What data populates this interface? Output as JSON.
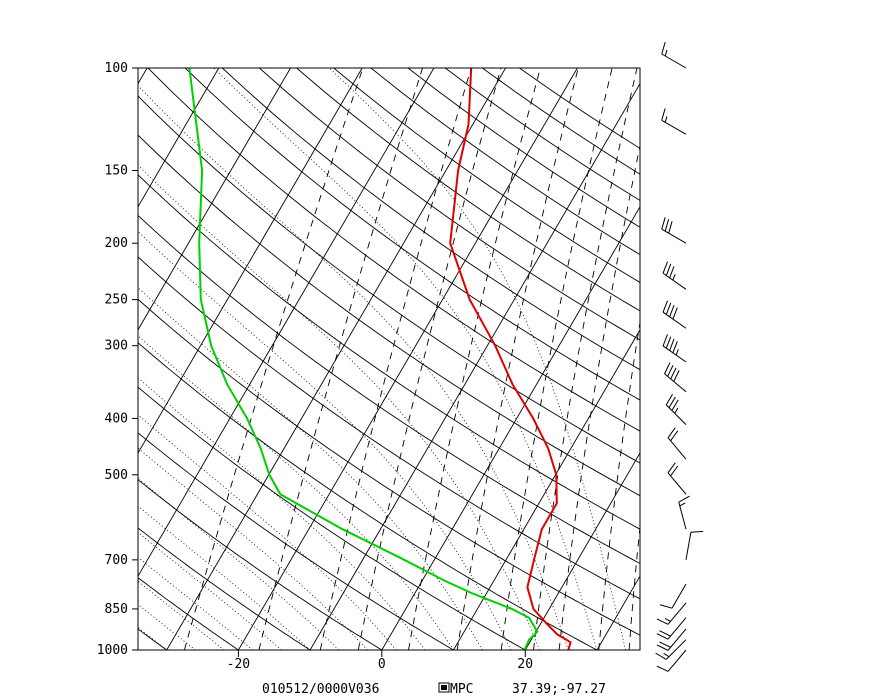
{
  "chart_data": {
    "type": "line",
    "title": "",
    "xlabel": "",
    "ylabel": "",
    "x_units": "°C",
    "y_units": "hPa",
    "y_scale": "log",
    "xlim": [
      -34,
      36
    ],
    "ylim": [
      1000,
      100
    ],
    "pressure_ticks": [
      100,
      150,
      200,
      250,
      300,
      400,
      500,
      700,
      850,
      1000
    ],
    "temperature_ticks": [
      -20,
      0,
      20
    ],
    "footer": {
      "datetime": "010512/0000V036",
      "source": "MPC",
      "location": "37.39;-97.27"
    },
    "series": [
      {
        "color": "#e00000",
        "points": [
          {
            "p": 1000,
            "t": 26.0
          },
          {
            "p": 970,
            "t": 25.7
          },
          {
            "p": 940,
            "t": 23.2
          },
          {
            "p": 900,
            "t": 20.8
          },
          {
            "p": 850,
            "t": 17.8
          },
          {
            "p": 780,
            "t": 15.2
          },
          {
            "p": 700,
            "t": 13.9
          },
          {
            "p": 620,
            "t": 12.5
          },
          {
            "p": 560,
            "t": 12.5
          },
          {
            "p": 500,
            "t": 10.1
          },
          {
            "p": 450,
            "t": 6.8
          },
          {
            "p": 400,
            "t": 2.3
          },
          {
            "p": 350,
            "t": -3.3
          },
          {
            "p": 300,
            "t": -8.9
          },
          {
            "p": 250,
            "t": -16.2
          },
          {
            "p": 200,
            "t": -23.5
          },
          {
            "p": 150,
            "t": -28.3
          },
          {
            "p": 125,
            "t": -30.6
          },
          {
            "p": 100,
            "t": -34.8
          }
        ]
      },
      {
        "color": "#00d000",
        "points": [
          {
            "p": 1000,
            "t": 19.9
          },
          {
            "p": 960,
            "t": 19.7
          },
          {
            "p": 930,
            "t": 20.2
          },
          {
            "p": 880,
            "t": 17.9
          },
          {
            "p": 850,
            "t": 14.8
          },
          {
            "p": 800,
            "t": 8.1
          },
          {
            "p": 760,
            "t": 3.1
          },
          {
            "p": 700,
            "t": -4.2
          },
          {
            "p": 620,
            "t": -15.3
          },
          {
            "p": 540,
            "t": -26.8
          },
          {
            "p": 500,
            "t": -29.9
          },
          {
            "p": 450,
            "t": -33.3
          },
          {
            "p": 400,
            "t": -37.6
          },
          {
            "p": 350,
            "t": -43.1
          },
          {
            "p": 300,
            "t": -48.5
          },
          {
            "p": 250,
            "t": -53.7
          },
          {
            "p": 200,
            "t": -58.5
          },
          {
            "p": 150,
            "t": -64.0
          },
          {
            "p": 100,
            "t": -74.1
          }
        ]
      }
    ],
    "wind_barbs": [
      {
        "p": 100,
        "dir": 300,
        "speed": 15
      },
      {
        "p": 130,
        "dir": 300,
        "speed": 15
      },
      {
        "p": 200,
        "dir": 300,
        "speed": 30
      },
      {
        "p": 240,
        "dir": 305,
        "speed": 35
      },
      {
        "p": 280,
        "dir": 305,
        "speed": 40
      },
      {
        "p": 320,
        "dir": 305,
        "speed": 45
      },
      {
        "p": 360,
        "dir": 310,
        "speed": 40
      },
      {
        "p": 410,
        "dir": 315,
        "speed": 35
      },
      {
        "p": 470,
        "dir": 320,
        "speed": 20
      },
      {
        "p": 540,
        "dir": 320,
        "speed": 20
      },
      {
        "p": 620,
        "dir": 345,
        "speed": 15
      },
      {
        "p": 700,
        "dir": 10,
        "speed": 10
      },
      {
        "p": 770,
        "dir": 210,
        "speed": 10
      },
      {
        "p": 830,
        "dir": 220,
        "speed": 15
      },
      {
        "p": 880,
        "dir": 220,
        "speed": 20
      },
      {
        "p": 920,
        "dir": 220,
        "speed": 20
      },
      {
        "p": 960,
        "dir": 225,
        "speed": 15
      },
      {
        "p": 1000,
        "dir": 220,
        "speed": 10
      }
    ],
    "grid": true,
    "legend": "none"
  }
}
